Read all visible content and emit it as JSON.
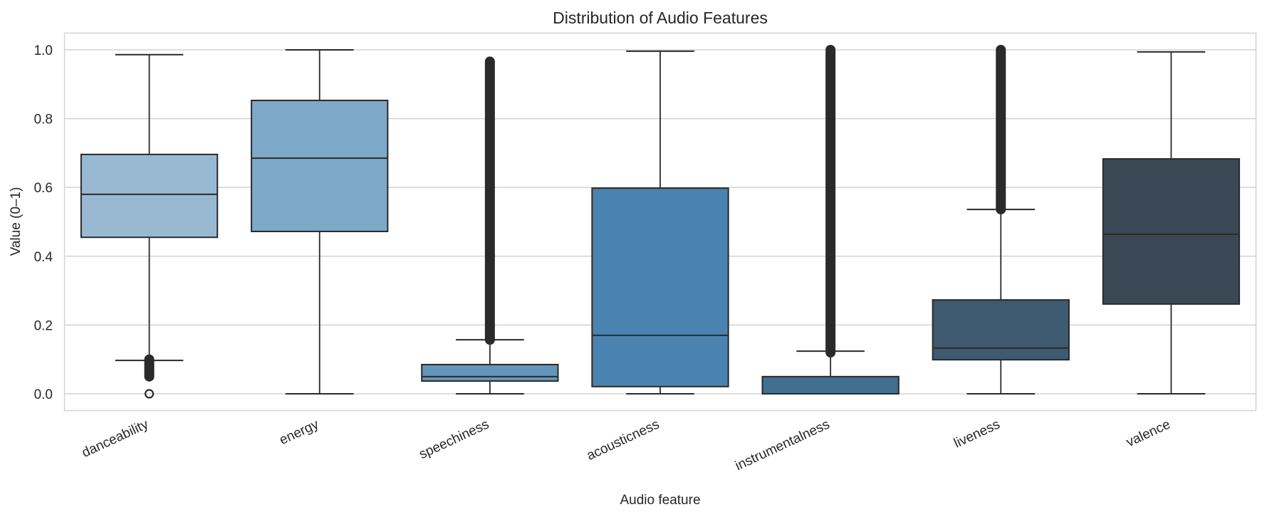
{
  "chart_data": {
    "type": "box",
    "title": "Distribution of Audio Features",
    "xlabel": "Audio feature",
    "ylabel": "Value (0–1)",
    "ylim": [
      -0.05,
      1.05
    ],
    "yticks": [
      0.0,
      0.2,
      0.4,
      0.6,
      0.8,
      1.0
    ],
    "ytick_labels": [
      "0.0",
      "0.2",
      "0.4",
      "0.6",
      "0.8",
      "1.0"
    ],
    "grid": true,
    "xtick_rotation": -25,
    "categories": [
      "danceability",
      "energy",
      "speechiness",
      "acousticness",
      "instrumentalness",
      "liveness",
      "valence"
    ],
    "series": [
      {
        "name": "danceability",
        "whislo": 0.097,
        "q1": 0.455,
        "med": 0.58,
        "q3": 0.696,
        "whishi": 0.986,
        "fliers_low": [
          0.05,
          0.1
        ],
        "fliers_extra": [
          0.0
        ],
        "fliers_high": null,
        "color": "#99b9d3"
      },
      {
        "name": "energy",
        "whislo": 0.0,
        "q1": 0.472,
        "med": 0.685,
        "q3": 0.853,
        "whishi": 1.0,
        "fliers_low": null,
        "fliers_extra": [],
        "fliers_high": null,
        "color": "#7ea8c8"
      },
      {
        "name": "speechiness",
        "whislo": 0.0,
        "q1": 0.037,
        "med": 0.05,
        "q3": 0.085,
        "whishi": 0.157,
        "fliers_low": null,
        "fliers_extra": [],
        "fliers_high": [
          0.157,
          0.966
        ],
        "color": "#6296bc"
      },
      {
        "name": "acousticness",
        "whislo": 0.0,
        "q1": 0.021,
        "med": 0.17,
        "q3": 0.598,
        "whishi": 0.996,
        "fliers_low": null,
        "fliers_extra": [],
        "fliers_high": null,
        "color": "#4a83af"
      },
      {
        "name": "instrumentalness",
        "whislo": 0.0,
        "q1": 0.0,
        "med": 0.0,
        "q3": 0.05,
        "whishi": 0.124,
        "fliers_low": null,
        "fliers_extra": [],
        "fliers_high": [
          0.12,
          1.0
        ],
        "color": "#426e8f"
      },
      {
        "name": "liveness",
        "whislo": 0.0,
        "q1": 0.099,
        "med": 0.133,
        "q3": 0.273,
        "whishi": 0.536,
        "fliers_low": null,
        "fliers_extra": [],
        "fliers_high": [
          0.536,
          1.0
        ],
        "color": "#3e5a70"
      },
      {
        "name": "valence",
        "whislo": 0.0,
        "q1": 0.261,
        "med": 0.464,
        "q3": 0.683,
        "whishi": 0.994,
        "fliers_low": null,
        "fliers_extra": [],
        "fliers_high": null,
        "color": "#3a4855"
      }
    ]
  },
  "style": {
    "grid_color": "#d3d3d3",
    "line_color": "#2a2a2a",
    "text_color": "#262626",
    "background": "#ffffff"
  }
}
